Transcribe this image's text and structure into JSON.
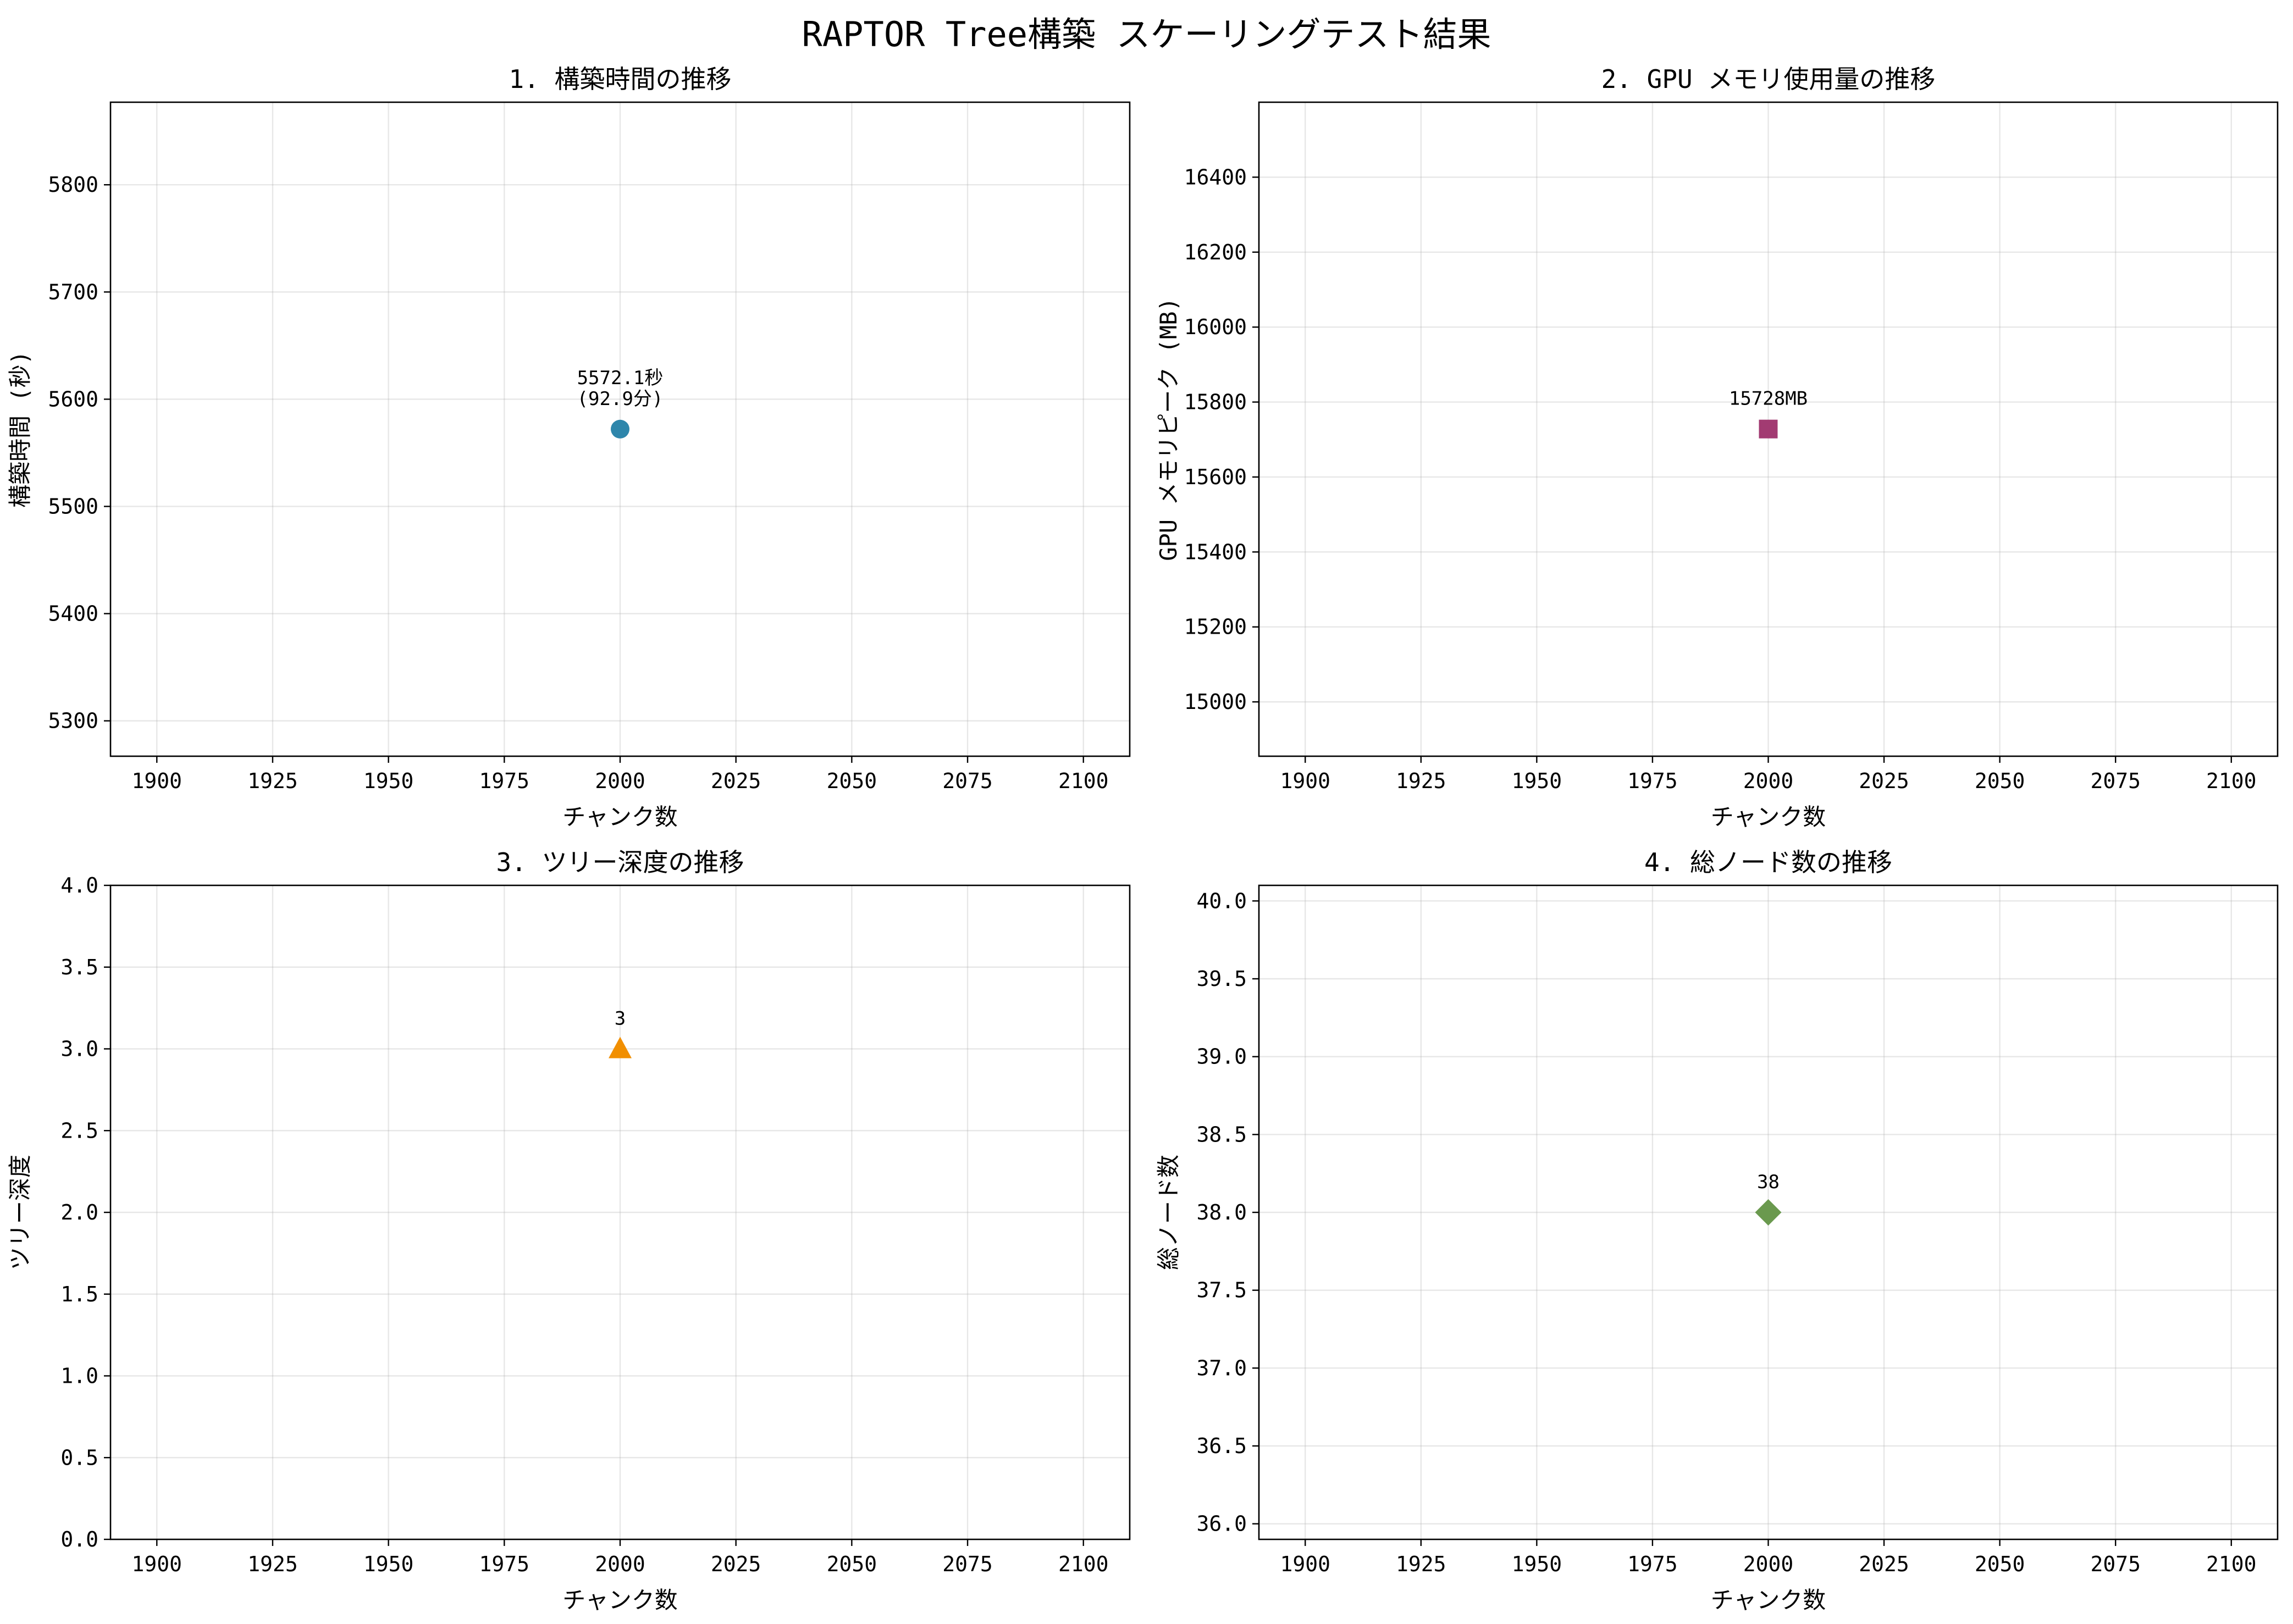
{
  "figure": {
    "suptitle": "RAPTOR Tree構築 スケーリングテスト結果"
  },
  "chart_data": [
    {
      "type": "scatter",
      "title": "1. 構築時間の推移",
      "xlabel": "チャンク数",
      "ylabel": "構築時間 (秒)",
      "xlim": [
        1890,
        2110
      ],
      "ylim": [
        5267,
        5877
      ],
      "xticks": [
        1900,
        1925,
        1950,
        1975,
        2000,
        2025,
        2050,
        2075,
        2100
      ],
      "yticks": [
        5300,
        5400,
        5500,
        5600,
        5700,
        5800
      ],
      "ytick_format": "int",
      "grid": true,
      "marker": "circle",
      "color": "#2E86AB",
      "points": [
        {
          "x": 2000,
          "y": 5572.1
        }
      ],
      "annotation": [
        "5572.1秒",
        "(92.9分)"
      ]
    },
    {
      "type": "scatter",
      "title": "2. GPU メモリ使用量の推移",
      "xlabel": "チャンク数",
      "ylabel": "GPU メモリピーク (MB)",
      "xlim": [
        1890,
        2110
      ],
      "ylim": [
        14855,
        16600
      ],
      "xticks": [
        1900,
        1925,
        1950,
        1975,
        2000,
        2025,
        2050,
        2075,
        2100
      ],
      "yticks": [
        15000,
        15200,
        15400,
        15600,
        15800,
        16000,
        16200,
        16400
      ],
      "ytick_format": "int",
      "grid": true,
      "marker": "square",
      "color": "#A23B72",
      "points": [
        {
          "x": 2000,
          "y": 15728
        }
      ],
      "annotation": [
        "15728MB"
      ]
    },
    {
      "type": "scatter",
      "title": "3. ツリー深度の推移",
      "xlabel": "チャンク数",
      "ylabel": "ツリー深度",
      "xlim": [
        1890,
        2110
      ],
      "ylim": [
        0,
        4
      ],
      "xticks": [
        1900,
        1925,
        1950,
        1975,
        2000,
        2025,
        2050,
        2075,
        2100
      ],
      "yticks": [
        0,
        0.5,
        1,
        1.5,
        2,
        2.5,
        3,
        3.5,
        4
      ],
      "ytick_format": "1dp",
      "grid": true,
      "marker": "triangle",
      "color": "#F18F01",
      "points": [
        {
          "x": 2000,
          "y": 3
        }
      ],
      "annotation": [
        "3"
      ]
    },
    {
      "type": "scatter",
      "title": "4. 総ノード数の推移",
      "xlabel": "チャンク数",
      "ylabel": "総ノード数",
      "xlim": [
        1890,
        2110
      ],
      "ylim": [
        35.9,
        40.1
      ],
      "xticks": [
        1900,
        1925,
        1950,
        1975,
        2000,
        2025,
        2050,
        2075,
        2100
      ],
      "yticks": [
        36,
        36.5,
        37,
        37.5,
        38,
        38.5,
        39,
        39.5,
        40
      ],
      "ytick_format": "1dp",
      "grid": true,
      "marker": "diamond",
      "color": "#6A994E",
      "points": [
        {
          "x": 2000,
          "y": 38
        }
      ],
      "annotation": [
        "38"
      ]
    }
  ]
}
